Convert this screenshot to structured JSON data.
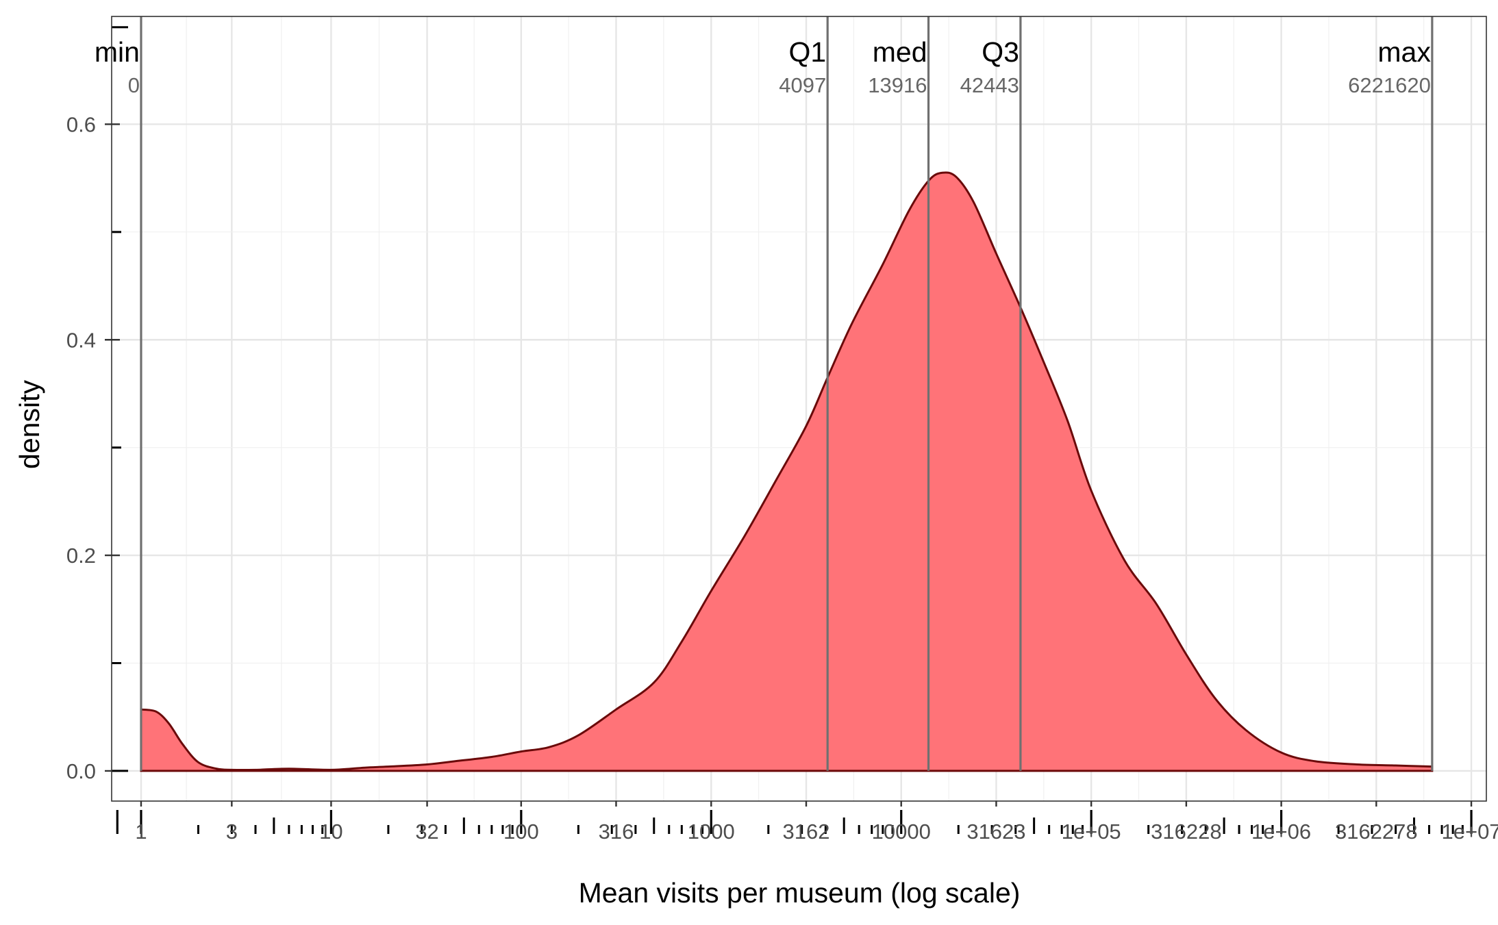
{
  "chart_data": {
    "type": "area",
    "xlabel": "Mean visits per museum (log scale)",
    "ylabel": "density",
    "x_scale": "log10",
    "xlim": [
      0.7,
      12000000
    ],
    "ylim": [
      -0.028,
      0.7
    ],
    "grid": true,
    "x_ticks": [
      {
        "value": 1,
        "label": "1"
      },
      {
        "value": 3,
        "label": "3"
      },
      {
        "value": 10,
        "label": "10"
      },
      {
        "value": 32,
        "label": "32"
      },
      {
        "value": 100,
        "label": "100"
      },
      {
        "value": 316,
        "label": "316"
      },
      {
        "value": 1000,
        "label": "1000"
      },
      {
        "value": 3162,
        "label": "3162"
      },
      {
        "value": 10000,
        "label": "10000"
      },
      {
        "value": 31623,
        "label": "31623"
      },
      {
        "value": 100000,
        "label": "1e+05"
      },
      {
        "value": 316228,
        "label": "316228"
      },
      {
        "value": 1000000,
        "label": "1e+06"
      },
      {
        "value": 3162278,
        "label": "3162278"
      },
      {
        "value": 10000000,
        "label": "1e+07"
      }
    ],
    "y_ticks": [
      {
        "value": 0.0,
        "label": "0.0"
      },
      {
        "value": 0.2,
        "label": "0.2"
      },
      {
        "value": 0.4,
        "label": "0.4"
      },
      {
        "value": 0.6,
        "label": "0.6"
      }
    ],
    "density_curve": {
      "fill": "#ff7378",
      "stroke": "#6b0a0a",
      "points": [
        [
          1,
          0.057
        ],
        [
          1.2,
          0.055
        ],
        [
          1.4,
          0.044
        ],
        [
          1.65,
          0.025
        ],
        [
          2,
          0.008
        ],
        [
          2.5,
          0.002
        ],
        [
          3,
          0.001
        ],
        [
          4,
          0.001
        ],
        [
          6,
          0.002
        ],
        [
          10,
          0.001
        ],
        [
          15,
          0.003
        ],
        [
          20,
          0.004
        ],
        [
          32,
          0.006
        ],
        [
          45,
          0.009
        ],
        [
          70,
          0.013
        ],
        [
          100,
          0.018
        ],
        [
          140,
          0.022
        ],
        [
          200,
          0.033
        ],
        [
          316,
          0.057
        ],
        [
          500,
          0.082
        ],
        [
          700,
          0.12
        ],
        [
          1000,
          0.167
        ],
        [
          1500,
          0.218
        ],
        [
          2200,
          0.27
        ],
        [
          3162,
          0.32
        ],
        [
          4097,
          0.365
        ],
        [
          5500,
          0.415
        ],
        [
          8000,
          0.47
        ],
        [
          11000,
          0.52
        ],
        [
          14000,
          0.548
        ],
        [
          16500,
          0.555
        ],
        [
          19500,
          0.551
        ],
        [
          24000,
          0.528
        ],
        [
          31623,
          0.48
        ],
        [
          42443,
          0.43
        ],
        [
          56000,
          0.38
        ],
        [
          75000,
          0.325
        ],
        [
          100000,
          0.26
        ],
        [
          150000,
          0.195
        ],
        [
          220000,
          0.155
        ],
        [
          316228,
          0.108
        ],
        [
          450000,
          0.067
        ],
        [
          650000,
          0.038
        ],
        [
          1000000,
          0.017
        ],
        [
          1500000,
          0.009
        ],
        [
          2500000,
          0.006
        ],
        [
          4000000,
          0.005
        ],
        [
          6221620,
          0.004
        ]
      ]
    },
    "summary_stats": [
      {
        "name": "min",
        "label": "0",
        "x": 1
      },
      {
        "name": "Q1",
        "label": "4097",
        "x": 4097
      },
      {
        "name": "med",
        "label": "13916",
        "x": 13916
      },
      {
        "name": "Q3",
        "label": "42443",
        "x": 42443
      },
      {
        "name": "max",
        "label": "6221620",
        "x": 6221620
      }
    ],
    "rug_ticks": {
      "major": [
        0.75,
        1,
        10,
        100,
        1000,
        10000,
        100000,
        1000000,
        10000000
      ],
      "medium": [
        5,
        50,
        500,
        5000,
        50000,
        500000,
        5000000
      ],
      "minor_multipliers": [
        2,
        3,
        4,
        6,
        7,
        8,
        9
      ]
    }
  }
}
